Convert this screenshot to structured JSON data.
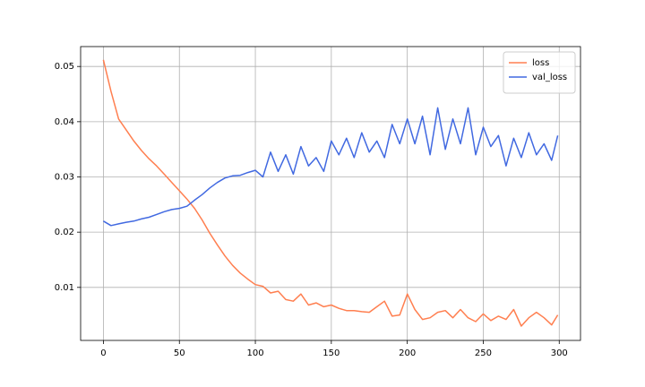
{
  "chart_data": {
    "type": "line",
    "x": [
      0,
      5,
      10,
      15,
      20,
      25,
      30,
      35,
      40,
      45,
      50,
      55,
      60,
      65,
      70,
      75,
      80,
      85,
      90,
      95,
      100,
      105,
      110,
      115,
      120,
      125,
      130,
      135,
      140,
      145,
      150,
      155,
      160,
      165,
      170,
      175,
      180,
      185,
      190,
      195,
      200,
      205,
      210,
      215,
      220,
      225,
      230,
      235,
      240,
      245,
      250,
      255,
      260,
      265,
      270,
      275,
      280,
      285,
      290,
      295,
      299
    ],
    "series": [
      {
        "name": "loss",
        "color": "#ff7f50",
        "values": [
          0.0512,
          0.0455,
          0.0405,
          0.0385,
          0.0365,
          0.0348,
          0.0333,
          0.032,
          0.0305,
          0.029,
          0.0275,
          0.026,
          0.0243,
          0.0222,
          0.0198,
          0.0177,
          0.0157,
          0.014,
          0.0126,
          0.0115,
          0.0105,
          0.0102,
          0.009,
          0.0093,
          0.0078,
          0.0075,
          0.0088,
          0.0068,
          0.0072,
          0.0065,
          0.0068,
          0.0062,
          0.0058,
          0.0058,
          0.0056,
          0.0055,
          0.0065,
          0.0075,
          0.0048,
          0.005,
          0.0088,
          0.006,
          0.0042,
          0.0045,
          0.0055,
          0.0058,
          0.0045,
          0.006,
          0.0045,
          0.0038,
          0.0052,
          0.004,
          0.0048,
          0.0042,
          0.006,
          0.003,
          0.0045,
          0.0055,
          0.0045,
          0.0032,
          0.005
        ]
      },
      {
        "name": "val_loss",
        "color": "#4169e1",
        "values": [
          0.022,
          0.0212,
          0.0215,
          0.0218,
          0.022,
          0.0224,
          0.0227,
          0.0232,
          0.0237,
          0.0241,
          0.0243,
          0.0247,
          0.0258,
          0.0268,
          0.028,
          0.029,
          0.0298,
          0.0302,
          0.0303,
          0.0308,
          0.0312,
          0.03,
          0.0345,
          0.031,
          0.034,
          0.0305,
          0.0355,
          0.032,
          0.0335,
          0.031,
          0.0365,
          0.034,
          0.037,
          0.0335,
          0.038,
          0.0345,
          0.0365,
          0.0335,
          0.0395,
          0.036,
          0.0405,
          0.036,
          0.041,
          0.034,
          0.0425,
          0.035,
          0.0405,
          0.036,
          0.0425,
          0.034,
          0.039,
          0.0355,
          0.0375,
          0.032,
          0.037,
          0.0335,
          0.038,
          0.034,
          0.036,
          0.033,
          0.0375
        ]
      }
    ],
    "xlim": [
      -15,
      314
    ],
    "ylim": [
      0.0004,
      0.0536
    ],
    "xticks": [
      0,
      50,
      100,
      150,
      200,
      250,
      300
    ],
    "yticks": [
      0.01,
      0.02,
      0.03,
      0.04,
      0.05
    ],
    "grid": true,
    "legend": "upper-right"
  }
}
